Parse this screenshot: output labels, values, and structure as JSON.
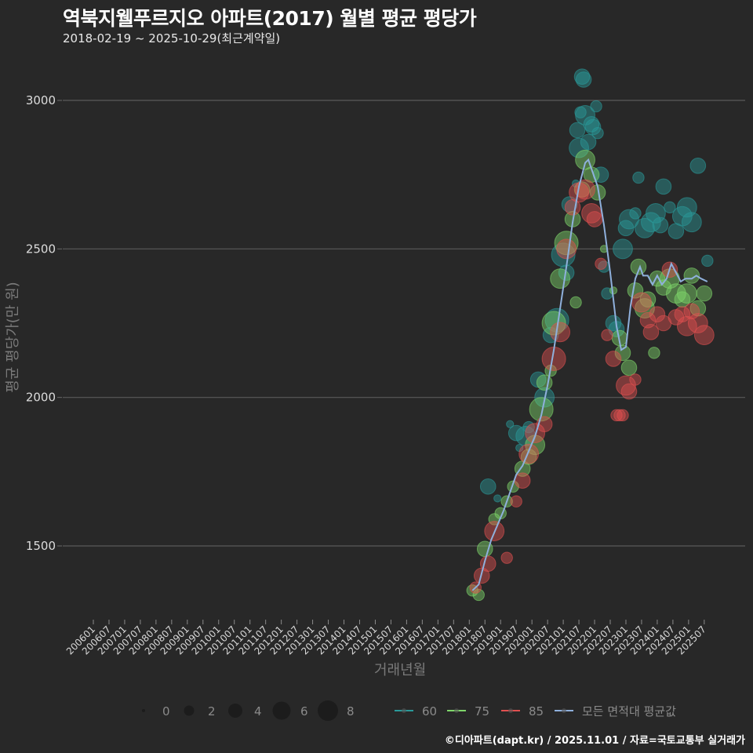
{
  "header": {
    "title": "역북지웰푸르지오 아파트(2017) 월별 평균 평당가",
    "subtitle": "2018-02-19 ~ 2025-10-29(최근계약일)"
  },
  "footer": "©디아파트(dapt.kr) / 2025.11.01 / 자료=국토교통부 실거래가",
  "colors": {
    "background": "#282828",
    "grid": "#5a5a5a",
    "s60": "#2a9a9a",
    "s75": "#7fd66a",
    "s85": "#e05050",
    "avg": "#8fb0dc"
  },
  "chart_data": {
    "type": "scatter",
    "title": "역북지웰푸르지오 아파트(2017) 월별 평균 평당가",
    "subtitle": "2018-02-19 ~ 2025-10-29(최근계약일)",
    "xlabel": "거래년월",
    "ylabel": "평균 평당가(만 원)",
    "ylim": [
      1230,
      3130
    ],
    "yticks": [
      1500,
      2000,
      2500,
      3000
    ],
    "xticks": [
      "200601",
      "200607",
      "200701",
      "200707",
      "200801",
      "200807",
      "200901",
      "200907",
      "201001",
      "201007",
      "201101",
      "201107",
      "201201",
      "201207",
      "201301",
      "201307",
      "201401",
      "201407",
      "201501",
      "201507",
      "201601",
      "201607",
      "201701",
      "201707",
      "201801",
      "201807",
      "201901",
      "201907",
      "202001",
      "202007",
      "202101",
      "202107",
      "202201",
      "202207",
      "202301",
      "202307",
      "202401",
      "202407",
      "202501",
      "202507"
    ],
    "grid": true,
    "size_legend": {
      "title": "",
      "values": [
        0,
        2,
        4,
        6,
        8
      ]
    },
    "legend": [
      "60",
      "75",
      "85",
      "모든 면적대 평균값"
    ],
    "series": [
      {
        "name": "60",
        "color": "#2a9a9a",
        "points": [
          [
            2018.6,
            1700,
            3
          ],
          [
            2018.9,
            1660,
            1
          ],
          [
            2019.3,
            1910,
            1
          ],
          [
            2019.5,
            1880,
            3
          ],
          [
            2019.6,
            1830,
            1
          ],
          [
            2019.8,
            1870,
            4
          ],
          [
            2019.9,
            1900,
            2
          ],
          [
            2020.2,
            2060,
            3
          ],
          [
            2020.4,
            2000,
            4
          ],
          [
            2020.6,
            2210,
            3
          ],
          [
            2020.8,
            2260,
            5
          ],
          [
            2021.0,
            2480,
            5
          ],
          [
            2021.1,
            2420,
            3
          ],
          [
            2021.2,
            2650,
            3
          ],
          [
            2021.4,
            2720,
            1
          ],
          [
            2021.45,
            2900,
            3
          ],
          [
            2021.5,
            2840,
            4
          ],
          [
            2021.55,
            2960,
            2
          ],
          [
            2021.6,
            3080,
            3
          ],
          [
            2021.65,
            3070,
            3
          ],
          [
            2021.7,
            2950,
            4
          ],
          [
            2021.8,
            2860,
            3
          ],
          [
            2021.9,
            2920,
            3
          ],
          [
            2021.95,
            2910,
            3
          ],
          [
            2022.05,
            2980,
            2
          ],
          [
            2022.1,
            2890,
            2
          ],
          [
            2022.2,
            2750,
            3
          ],
          [
            2022.3,
            2440,
            2
          ],
          [
            2022.4,
            2350,
            2
          ],
          [
            2022.6,
            2250,
            3
          ],
          [
            2022.7,
            2230,
            3
          ],
          [
            2022.9,
            2500,
            4
          ],
          [
            2023.0,
            2570,
            3
          ],
          [
            2023.1,
            2600,
            4
          ],
          [
            2023.3,
            2620,
            2
          ],
          [
            2023.4,
            2740,
            2
          ],
          [
            2023.6,
            2570,
            4
          ],
          [
            2023.8,
            2590,
            4
          ],
          [
            2023.95,
            2620,
            4
          ],
          [
            2024.1,
            2580,
            3
          ],
          [
            2024.2,
            2710,
            3
          ],
          [
            2024.4,
            2640,
            2
          ],
          [
            2024.6,
            2560,
            3
          ],
          [
            2024.8,
            2610,
            4
          ],
          [
            2024.95,
            2640,
            4
          ],
          [
            2025.1,
            2590,
            4
          ],
          [
            2025.3,
            2780,
            3
          ],
          [
            2025.6,
            2460,
            2
          ]
        ]
      },
      {
        "name": "75",
        "color": "#7fd66a",
        "points": [
          [
            2018.1,
            1350,
            2
          ],
          [
            2018.3,
            1335,
            2
          ],
          [
            2018.5,
            1490,
            3
          ],
          [
            2018.8,
            1590,
            2
          ],
          [
            2019.0,
            1610,
            2
          ],
          [
            2019.2,
            1650,
            2
          ],
          [
            2019.4,
            1700,
            2
          ],
          [
            2019.7,
            1760,
            3
          ],
          [
            2019.9,
            1800,
            3
          ],
          [
            2020.1,
            1840,
            4
          ],
          [
            2020.3,
            1960,
            5
          ],
          [
            2020.4,
            2050,
            3
          ],
          [
            2020.6,
            2090,
            2
          ],
          [
            2020.7,
            2250,
            5
          ],
          [
            2020.9,
            2400,
            4
          ],
          [
            2021.1,
            2520,
            5
          ],
          [
            2021.3,
            2600,
            3
          ],
          [
            2021.4,
            2320,
            2
          ],
          [
            2021.6,
            2700,
            3
          ],
          [
            2021.7,
            2800,
            4
          ],
          [
            2021.9,
            2750,
            3
          ],
          [
            2022.1,
            2690,
            3
          ],
          [
            2022.3,
            2500,
            1
          ],
          [
            2022.6,
            2360,
            1
          ],
          [
            2022.8,
            2200,
            3
          ],
          [
            2022.9,
            2150,
            3
          ],
          [
            2023.1,
            2100,
            3
          ],
          [
            2023.3,
            2360,
            3
          ],
          [
            2023.4,
            2440,
            3
          ],
          [
            2023.6,
            2300,
            4
          ],
          [
            2023.7,
            2330,
            3
          ],
          [
            2023.9,
            2150,
            2
          ],
          [
            2024.0,
            2400,
            3
          ],
          [
            2024.2,
            2370,
            3
          ],
          [
            2024.4,
            2400,
            4
          ],
          [
            2024.6,
            2350,
            4
          ],
          [
            2024.8,
            2330,
            3
          ],
          [
            2024.95,
            2350,
            4
          ],
          [
            2025.1,
            2410,
            3
          ],
          [
            2025.3,
            2300,
            3
          ],
          [
            2025.5,
            2350,
            3
          ]
        ]
      },
      {
        "name": "85",
        "color": "#e05050",
        "points": [
          [
            2018.2,
            1360,
            2
          ],
          [
            2018.4,
            1400,
            3
          ],
          [
            2018.6,
            1440,
            3
          ],
          [
            2018.8,
            1550,
            4
          ],
          [
            2019.2,
            1460,
            2
          ],
          [
            2019.5,
            1650,
            2
          ],
          [
            2019.7,
            1720,
            3
          ],
          [
            2019.9,
            1810,
            4
          ],
          [
            2020.1,
            1880,
            4
          ],
          [
            2020.4,
            1910,
            3
          ],
          [
            2020.7,
            2130,
            5
          ],
          [
            2020.9,
            2220,
            4
          ],
          [
            2021.1,
            2500,
            4
          ],
          [
            2021.3,
            2640,
            3
          ],
          [
            2021.5,
            2690,
            4
          ],
          [
            2021.7,
            2700,
            4
          ],
          [
            2021.9,
            2620,
            4
          ],
          [
            2022.0,
            2600,
            3
          ],
          [
            2022.2,
            2450,
            2
          ],
          [
            2022.4,
            2210,
            2
          ],
          [
            2022.6,
            2130,
            3
          ],
          [
            2022.7,
            1940,
            2
          ],
          [
            2022.8,
            1940,
            2
          ],
          [
            2022.9,
            1940,
            2
          ],
          [
            2023.0,
            2040,
            4
          ],
          [
            2023.1,
            2020,
            3
          ],
          [
            2023.3,
            2060,
            2
          ],
          [
            2023.5,
            2320,
            4
          ],
          [
            2023.7,
            2260,
            3
          ],
          [
            2023.8,
            2220,
            3
          ],
          [
            2024.0,
            2280,
            3
          ],
          [
            2024.2,
            2250,
            3
          ],
          [
            2024.4,
            2430,
            3
          ],
          [
            2024.6,
            2270,
            3
          ],
          [
            2024.8,
            2280,
            3
          ],
          [
            2024.95,
            2240,
            4
          ],
          [
            2025.1,
            2290,
            3
          ],
          [
            2025.3,
            2250,
            4
          ],
          [
            2025.5,
            2210,
            4
          ]
        ]
      },
      {
        "name": "모든 면적대 평균값",
        "color": "#8fb0dc",
        "type": "line",
        "points": [
          [
            2018.1,
            1350
          ],
          [
            2018.3,
            1370
          ],
          [
            2018.5,
            1450
          ],
          [
            2018.7,
            1520
          ],
          [
            2018.9,
            1570
          ],
          [
            2019.1,
            1620
          ],
          [
            2019.3,
            1680
          ],
          [
            2019.5,
            1740
          ],
          [
            2019.7,
            1770
          ],
          [
            2019.9,
            1820
          ],
          [
            2020.1,
            1870
          ],
          [
            2020.3,
            1940
          ],
          [
            2020.5,
            2040
          ],
          [
            2020.7,
            2160
          ],
          [
            2020.9,
            2300
          ],
          [
            2021.1,
            2440
          ],
          [
            2021.3,
            2590
          ],
          [
            2021.5,
            2710
          ],
          [
            2021.7,
            2790
          ],
          [
            2021.8,
            2800
          ],
          [
            2021.9,
            2770
          ],
          [
            2022.1,
            2710
          ],
          [
            2022.3,
            2580
          ],
          [
            2022.5,
            2420
          ],
          [
            2022.7,
            2240
          ],
          [
            2022.85,
            2160
          ],
          [
            2023.0,
            2170
          ],
          [
            2023.15,
            2310
          ],
          [
            2023.3,
            2400
          ],
          [
            2023.45,
            2440
          ],
          [
            2023.55,
            2410
          ],
          [
            2023.7,
            2410
          ],
          [
            2023.85,
            2380
          ],
          [
            2024.0,
            2410
          ],
          [
            2024.15,
            2380
          ],
          [
            2024.3,
            2400
          ],
          [
            2024.45,
            2450
          ],
          [
            2024.6,
            2420
          ],
          [
            2024.75,
            2390
          ],
          [
            2024.9,
            2400
          ],
          [
            2025.1,
            2400
          ],
          [
            2025.25,
            2410
          ],
          [
            2025.4,
            2400
          ],
          [
            2025.6,
            2390
          ]
        ]
      }
    ]
  },
  "axis": {
    "ylabel": "평균 평당가(만 원)",
    "xlabel": "거래년월"
  },
  "legend": {
    "sizes": [
      "0",
      "2",
      "4",
      "6",
      "8"
    ],
    "lines": [
      "60",
      "75",
      "85",
      "모든 면적대 평균값"
    ]
  }
}
